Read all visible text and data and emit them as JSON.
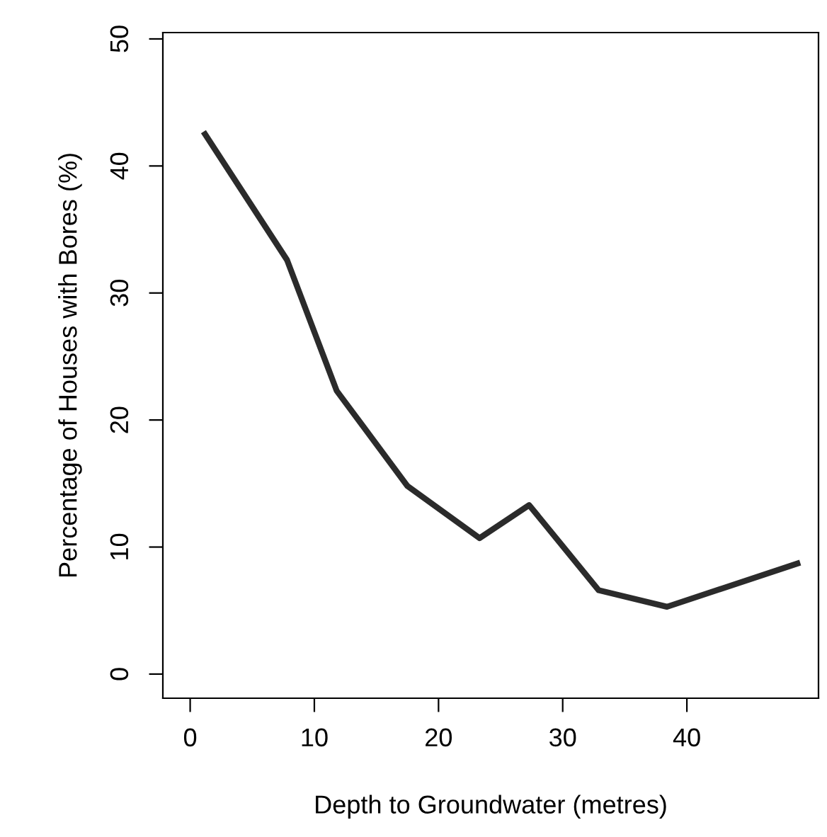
{
  "chart_data": {
    "type": "line",
    "xlabel": "Depth to Groundwater (metres)",
    "ylabel": "Percentage of Houses with Bores (%)",
    "x": [
      1.2,
      7.8,
      11.8,
      17.5,
      23.3,
      27.3,
      32.9,
      38.4,
      48.9
    ],
    "series": [
      {
        "color": "#2b2b2b",
        "values": [
          42.5,
          32.6,
          22.3,
          14.8,
          10.7,
          13.3,
          6.6,
          5.3,
          8.7
        ]
      }
    ],
    "xlim": [
      -2.2,
      50.6
    ],
    "xticks": [
      0,
      10,
      20,
      30,
      40
    ],
    "ylim": [
      -1.9,
      50.5
    ],
    "yticks": [
      0,
      10,
      20,
      30,
      40,
      50
    ],
    "grid": false,
    "legend": false,
    "marker": "none",
    "line_style": "solid"
  }
}
